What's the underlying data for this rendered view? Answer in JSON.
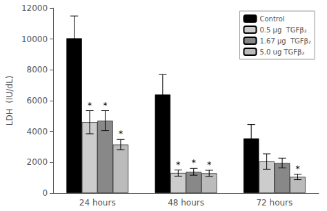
{
  "chart_data": {
    "type": "bar",
    "categories": [
      "24 hours",
      "48 hours",
      "72 hours"
    ],
    "series": [
      {
        "name": "Control",
        "color": "#000000",
        "values": [
          10050,
          6400,
          3550
        ],
        "errors": [
          1450,
          1300,
          900
        ]
      },
      {
        "name": "0.5 μg  TGFβ₂",
        "color": "#cccccc",
        "values": [
          4600,
          1300,
          2050
        ],
        "errors": [
          750,
          200,
          500
        ]
      },
      {
        "name": "1.67 μg  TGFβ₂",
        "color": "#888888",
        "values": [
          4700,
          1380,
          1950
        ],
        "errors": [
          650,
          220,
          320
        ]
      },
      {
        "name": "5.0 ug TGFβ₂",
        "color": "#bbbbbb",
        "values": [
          3150,
          1280,
          1050
        ],
        "errors": [
          330,
          200,
          180
        ]
      }
    ],
    "ylabel": "LDH  (IU/dL)",
    "ylim": [
      0,
      12000
    ],
    "yticks": [
      0,
      2000,
      4000,
      6000,
      8000,
      10000,
      12000
    ],
    "grid": false,
    "legend": "upper right",
    "annotations": [
      {
        "text": "*",
        "series": "0.5 μg  TGFβ₂",
        "category": "24 hours"
      },
      {
        "text": "*",
        "series": "1.67 μg  TGFβ₂",
        "category": "24 hours"
      },
      {
        "text": "*",
        "series": "5.0 ug TGFβ₂",
        "category": "24 hours"
      },
      {
        "text": "*",
        "series": "0.5 μg  TGFβ₂",
        "category": "48 hours"
      },
      {
        "text": "*",
        "series": "1.67 μg  TGFβ₂",
        "category": "48 hours"
      },
      {
        "text": "*",
        "series": "5.0 ug TGFβ₂",
        "category": "48 hours"
      },
      {
        "text": "*",
        "series": "5.0 ug TGFβ₂",
        "category": "72 hours"
      }
    ]
  }
}
